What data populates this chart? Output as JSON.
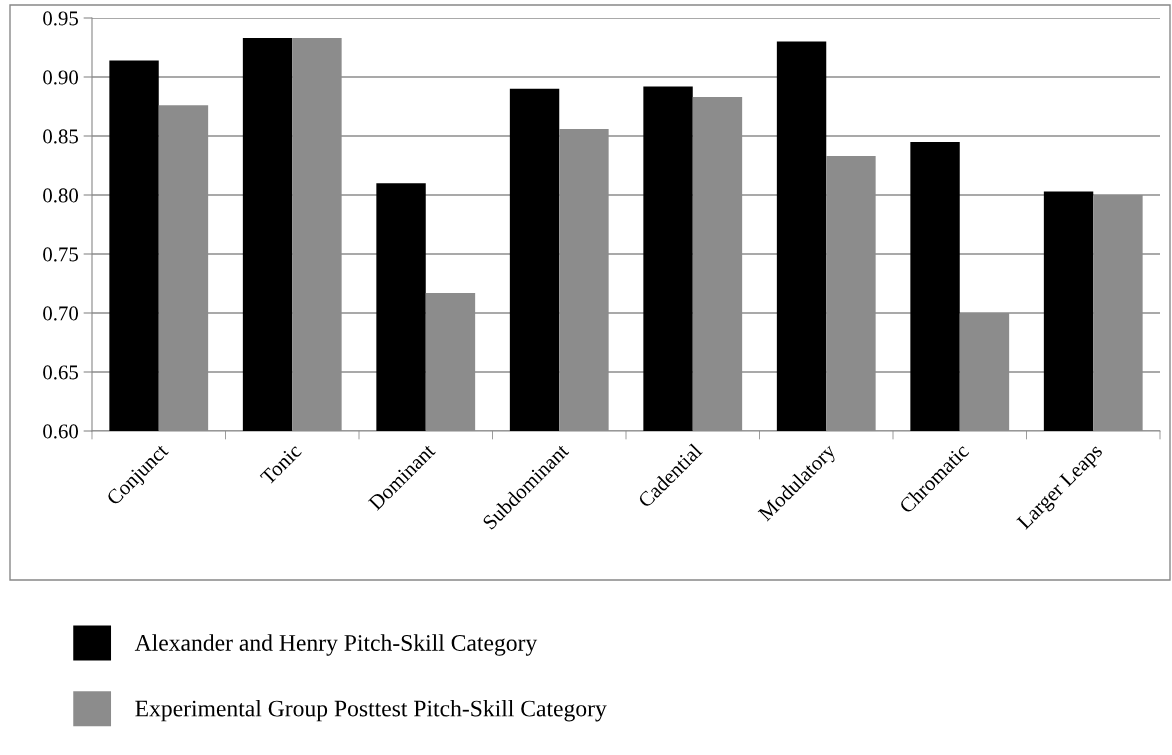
{
  "chart_data": {
    "type": "bar",
    "categories": [
      "Conjunct",
      "Tonic",
      "Dominant",
      "Subdominant",
      "Cadential",
      "Modulatory",
      "Chromatic",
      "Larger Leaps"
    ],
    "series": [
      {
        "name": "Alexander and Henry Pitch-Skill Category",
        "color": "#000000",
        "values": [
          0.914,
          0.933,
          0.81,
          0.89,
          0.892,
          0.93,
          0.845,
          0.803
        ]
      },
      {
        "name": "Experimental Group Posttest Pitch-Skill Category",
        "color": "#8c8c8c",
        "values": [
          0.876,
          0.933,
          0.717,
          0.856,
          0.883,
          0.833,
          0.7,
          0.8
        ]
      }
    ],
    "ylim": [
      0.6,
      0.95
    ],
    "yticks": [
      {
        "value": 0.6,
        "label": "0.60"
      },
      {
        "value": 0.65,
        "label": "0.65"
      },
      {
        "value": 0.7,
        "label": "0.70"
      },
      {
        "value": 0.75,
        "label": "0.75"
      },
      {
        "value": 0.8,
        "label": "0.80"
      },
      {
        "value": 0.85,
        "label": "0.85"
      },
      {
        "value": 0.9,
        "label": "0.90"
      },
      {
        "value": 0.95,
        "label": "0.95"
      }
    ],
    "grid": "y",
    "legend": "bottom"
  }
}
